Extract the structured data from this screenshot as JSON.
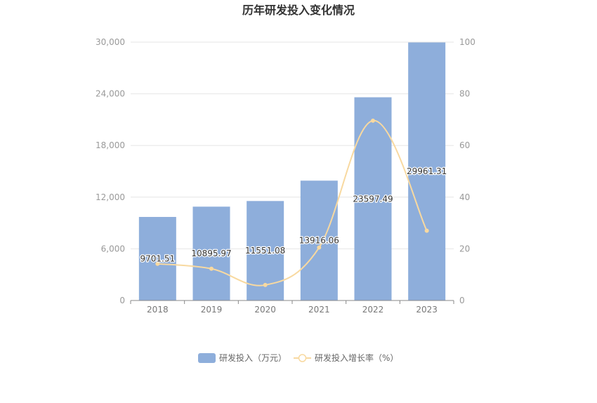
{
  "chart_data": {
    "type": "bar",
    "title": "历年研发投入变化情况",
    "categories": [
      "2018",
      "2019",
      "2020",
      "2021",
      "2022",
      "2023"
    ],
    "y_left": {
      "min": 0,
      "max": 30000,
      "ticks": [
        "0",
        "6,000",
        "12,000",
        "18,000",
        "24,000",
        "30,000"
      ]
    },
    "y_right": {
      "min": 0,
      "max": 100,
      "ticks": [
        "0",
        "20",
        "40",
        "60",
        "80",
        "100"
      ]
    },
    "series": [
      {
        "name": "研发投入（万元）",
        "type": "bar",
        "axis": "left",
        "color": "#8eaedb",
        "values": [
          9701.51,
          10895.97,
          11551.08,
          13916.06,
          23597.49,
          29961.31
        ],
        "labels": [
          "9701.51",
          "10895.97",
          "11551.08",
          "13916.06",
          "23597.49",
          "29961.31"
        ]
      },
      {
        "name": "研发投入增长率（%）",
        "type": "line",
        "axis": "right",
        "color": "#f8d9a0",
        "values": [
          14.2,
          12.3,
          6.0,
          20.5,
          69.6,
          27.0
        ]
      }
    ],
    "legend_position": "bottom-center",
    "grid": true
  }
}
